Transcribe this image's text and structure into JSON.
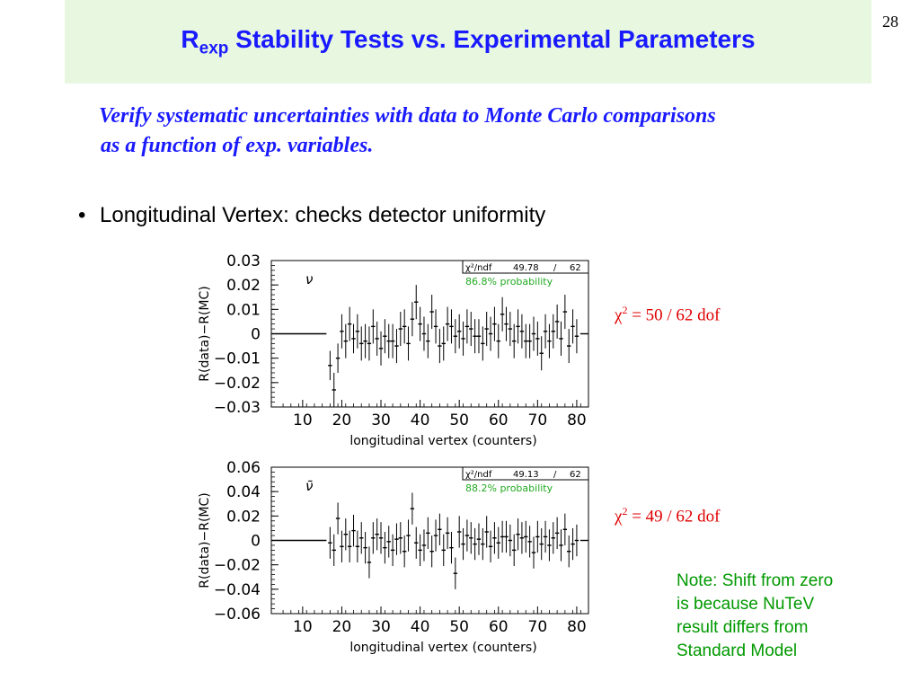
{
  "page_number": "28",
  "title": {
    "main": "R",
    "sub": "exp",
    "rest": " Stability Tests vs. Experimental Parameters"
  },
  "subtitle": {
    "line1": "Verify systematic uncertainties with data to Monte Carlo comparisons",
    "line2": "as a function of exp. variables."
  },
  "bullet": {
    "symbol": "•",
    "text": "Longitudinal Vertex: checks detector uniformity"
  },
  "chi_annotations": [
    {
      "prefix": "χ",
      "power": "2",
      "rest": " = 50 / 62 dof"
    },
    {
      "prefix": "χ",
      "power": "2",
      "rest": " = 49 / 62 dof"
    }
  ],
  "note": {
    "lines": [
      "Note: Shift from zero",
      "is because NuTeV",
      "result differs from",
      "Standard Model"
    ]
  },
  "colors": {
    "title": "#1a1aff",
    "title_bg": "#e8f8e0",
    "chi": "#e00000",
    "note": "#009900",
    "prob": "#22aa22"
  },
  "chart_data": [
    {
      "type": "scatter",
      "panel_label": "ν",
      "xlabel": "longitudinal vertex (counters)",
      "ylabel": "R(data)−R(MC)",
      "xlim": [
        2,
        83
      ],
      "ylim": [
        -0.03,
        0.03
      ],
      "xticks": [
        "10",
        "20",
        "30",
        "40",
        "50",
        "60",
        "70",
        "80"
      ],
      "yticks": [
        "0.03",
        "0.02",
        "0.01",
        "0",
        "−0.01",
        "−0.02",
        "−0.03"
      ],
      "stats_box": {
        "chi2_label": "χ²/ndf",
        "chi2": "49.78",
        "sep": "/",
        "ndf": "62",
        "probability": "86.8% probability"
      },
      "x": [
        17,
        18,
        19,
        20,
        21,
        22,
        23,
        24,
        25,
        26,
        27,
        28,
        29,
        30,
        31,
        32,
        33,
        34,
        35,
        36,
        37,
        38,
        39,
        40,
        41,
        42,
        43,
        44,
        45,
        46,
        47,
        48,
        49,
        50,
        51,
        52,
        53,
        54,
        55,
        56,
        57,
        58,
        59,
        60,
        61,
        62,
        63,
        64,
        65,
        66,
        67,
        68,
        69,
        70,
        71,
        72,
        73,
        74,
        75,
        76,
        77,
        78,
        79,
        80
      ],
      "values": [
        -0.013,
        -0.023,
        -0.01,
        0.001,
        -0.003,
        0.004,
        -0.002,
        0.001,
        -0.004,
        -0.003,
        -0.004,
        0.003,
        -0.002,
        -0.006,
        -0.001,
        -0.003,
        -0.003,
        -0.005,
        0.002,
        0.003,
        -0.004,
        0.006,
        0.013,
        0.004,
        0.0,
        -0.003,
        0.009,
        0.003,
        -0.005,
        -0.004,
        0.004,
        0.003,
        -0.001,
        0.001,
        -0.002,
        0.003,
        0.002,
        -0.001,
        -0.001,
        -0.004,
        0.002,
        0.0,
        0.004,
        -0.003,
        0.008,
        0.004,
        0.002,
        -0.003,
        0.003,
        0.001,
        -0.003,
        -0.003,
        0.0,
        -0.002,
        -0.008,
        0.001,
        -0.003,
        0.001,
        0.005,
        -0.002,
        0.009,
        -0.005,
        0.003,
        -0.001
      ],
      "errors": [
        0.006,
        0.007,
        0.006,
        0.007,
        0.007,
        0.007,
        0.006,
        0.007,
        0.007,
        0.007,
        0.007,
        0.007,
        0.007,
        0.007,
        0.007,
        0.007,
        0.007,
        0.007,
        0.007,
        0.007,
        0.007,
        0.007,
        0.007,
        0.007,
        0.007,
        0.007,
        0.007,
        0.007,
        0.007,
        0.007,
        0.007,
        0.007,
        0.007,
        0.007,
        0.007,
        0.007,
        0.007,
        0.007,
        0.007,
        0.007,
        0.007,
        0.007,
        0.007,
        0.007,
        0.007,
        0.007,
        0.007,
        0.007,
        0.007,
        0.007,
        0.007,
        0.007,
        0.007,
        0.007,
        0.007,
        0.007,
        0.007,
        0.007,
        0.007,
        0.007,
        0.007,
        0.007,
        0.007,
        0.007
      ]
    },
    {
      "type": "scatter",
      "panel_label": "ν̄",
      "xlabel": "longitudinal vertex (counters)",
      "ylabel": "R(data)−R(MC)",
      "xlim": [
        2,
        83
      ],
      "ylim": [
        -0.06,
        0.06
      ],
      "xticks": [
        "10",
        "20",
        "30",
        "40",
        "50",
        "60",
        "70",
        "80"
      ],
      "yticks": [
        "0.06",
        "0.04",
        "0.02",
        "0",
        "−0.02",
        "−0.04",
        "−0.06"
      ],
      "stats_box": {
        "chi2_label": "χ²/ndf",
        "chi2": "49.13",
        "sep": "/",
        "ndf": "62",
        "probability": "88.2% probability"
      },
      "x": [
        17,
        18,
        19,
        20,
        21,
        22,
        23,
        24,
        25,
        26,
        27,
        28,
        29,
        30,
        31,
        32,
        33,
        34,
        35,
        36,
        37,
        38,
        39,
        40,
        41,
        42,
        43,
        44,
        45,
        46,
        47,
        48,
        49,
        50,
        51,
        52,
        53,
        54,
        55,
        56,
        57,
        58,
        59,
        60,
        61,
        62,
        63,
        64,
        65,
        66,
        67,
        68,
        69,
        70,
        71,
        72,
        73,
        74,
        75,
        76,
        77,
        78,
        79,
        80
      ],
      "values": [
        -0.002,
        -0.008,
        0.018,
        -0.005,
        0.005,
        -0.005,
        0.008,
        -0.005,
        0.002,
        -0.006,
        -0.018,
        0.002,
        0.005,
        0.002,
        -0.006,
        -0.001,
        -0.008,
        0.001,
        0.002,
        -0.009,
        0.004,
        0.026,
        -0.002,
        -0.008,
        -0.004,
        0.006,
        -0.009,
        0.004,
        0.009,
        -0.008,
        0.006,
        -0.006,
        -0.027,
        0.007,
        -0.003,
        0.004,
        0.002,
        -0.003,
        0.001,
        -0.003,
        0.007,
        -0.005,
        0.002,
        -0.002,
        0.003,
        0.003,
        0.0,
        -0.008,
        0.005,
        0.002,
        0.003,
        -0.001,
        -0.01,
        0.003,
        -0.003,
        0.003,
        -0.004,
        0.002,
        0.006,
        -0.004,
        0.009,
        -0.009,
        -0.003,
        0.0
      ],
      "errors": [
        0.013,
        0.013,
        0.013,
        0.013,
        0.013,
        0.013,
        0.013,
        0.013,
        0.013,
        0.013,
        0.013,
        0.013,
        0.013,
        0.013,
        0.013,
        0.013,
        0.013,
        0.013,
        0.013,
        0.013,
        0.013,
        0.013,
        0.013,
        0.013,
        0.013,
        0.013,
        0.013,
        0.013,
        0.013,
        0.013,
        0.013,
        0.013,
        0.013,
        0.013,
        0.013,
        0.013,
        0.013,
        0.013,
        0.013,
        0.013,
        0.013,
        0.013,
        0.013,
        0.013,
        0.013,
        0.013,
        0.013,
        0.013,
        0.013,
        0.013,
        0.013,
        0.013,
        0.013,
        0.013,
        0.013,
        0.013,
        0.013,
        0.013,
        0.013,
        0.013,
        0.013,
        0.013,
        0.013,
        0.013
      ]
    }
  ]
}
